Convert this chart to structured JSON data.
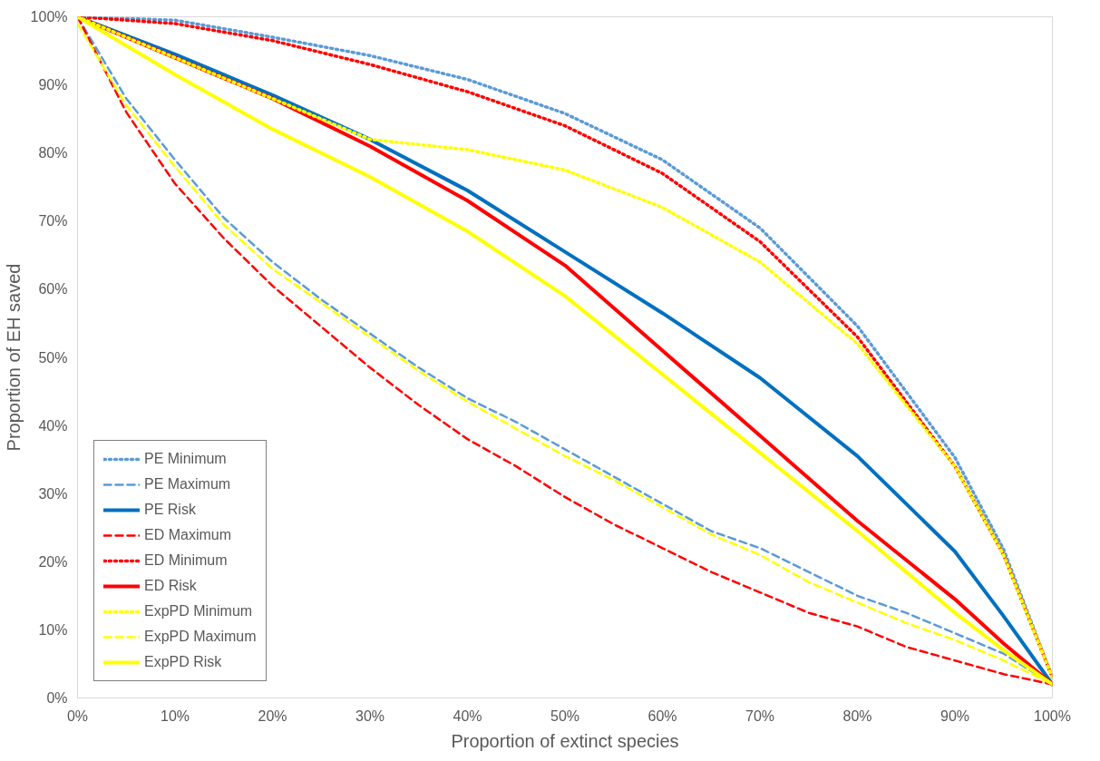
{
  "chart_data": {
    "type": "line",
    "xlabel": "Proportion of extinct species",
    "ylabel": "Proportion of EH saved",
    "xlim": [
      0,
      100
    ],
    "ylim": [
      0,
      100
    ],
    "xticks": [
      {
        "value": 0,
        "label": "0%"
      },
      {
        "value": 10,
        "label": "10%"
      },
      {
        "value": 20,
        "label": "20%"
      },
      {
        "value": 30,
        "label": "30%"
      },
      {
        "value": 40,
        "label": "40%"
      },
      {
        "value": 50,
        "label": "50%"
      },
      {
        "value": 60,
        "label": "60%"
      },
      {
        "value": 70,
        "label": "70%"
      },
      {
        "value": 80,
        "label": "80%"
      },
      {
        "value": 90,
        "label": "90%"
      },
      {
        "value": 100,
        "label": "100%"
      }
    ],
    "yticks": [
      {
        "value": 0,
        "label": "0%"
      },
      {
        "value": 10,
        "label": "10%"
      },
      {
        "value": 20,
        "label": "20%"
      },
      {
        "value": 30,
        "label": "30%"
      },
      {
        "value": 40,
        "label": "40%"
      },
      {
        "value": 50,
        "label": "50%"
      },
      {
        "value": 60,
        "label": "60%"
      },
      {
        "value": 70,
        "label": "70%"
      },
      {
        "value": 80,
        "label": "80%"
      },
      {
        "value": 90,
        "label": "90%"
      },
      {
        "value": 100,
        "label": "100%"
      }
    ],
    "grid": false,
    "legend": "bottom left",
    "marker": "none",
    "series": [
      {
        "name": "PE Minimum",
        "color": "#5b9bd5",
        "line_style": "dotted",
        "x": [
          0,
          10,
          20,
          30,
          40,
          50,
          60,
          70,
          80,
          90,
          95,
          100
        ],
        "values": [
          100,
          99.5,
          97,
          94.3,
          90.8,
          85.8,
          79,
          69,
          54.6,
          35.3,
          21.8,
          3
        ]
      },
      {
        "name": "PE Maximum",
        "color": "#5b9bd5",
        "line_style": "dashed",
        "x": [
          0,
          5,
          10,
          15,
          20,
          25,
          30,
          35,
          40,
          45,
          50,
          55,
          60,
          65,
          70,
          75,
          80,
          85,
          90,
          95,
          100
        ],
        "values": [
          100,
          88,
          79,
          70.5,
          64,
          58.5,
          53.5,
          48.5,
          44,
          40.5,
          36.5,
          32.5,
          28.5,
          24.5,
          22,
          18.5,
          15,
          12.5,
          9.5,
          6.5,
          2
        ]
      },
      {
        "name": "PE Risk",
        "color": "#0070c0",
        "line_style": "solid",
        "x": [
          0,
          10,
          20,
          30,
          40,
          50,
          60,
          70,
          80,
          90,
          95,
          100
        ],
        "values": [
          100,
          94.5,
          88.5,
          82,
          74.5,
          65.5,
          56.5,
          47,
          35.5,
          21.5,
          12,
          2
        ]
      },
      {
        "name": "ED Maximum",
        "color": "#ff0000",
        "line_style": "dashed",
        "x": [
          0,
          5,
          10,
          15,
          20,
          25,
          30,
          35,
          40,
          45,
          50,
          55,
          60,
          65,
          70,
          75,
          80,
          85,
          90,
          95,
          100
        ],
        "values": [
          100,
          86,
          75.5,
          67.5,
          60.5,
          54.5,
          48.5,
          43,
          38,
          34,
          29.5,
          25.5,
          22,
          18.5,
          15.5,
          12.5,
          10.5,
          7.5,
          5.5,
          3.5,
          2
        ]
      },
      {
        "name": "ED Minimum",
        "color": "#ff0000",
        "line_style": "dotted",
        "x": [
          0,
          10,
          20,
          30,
          40,
          50,
          60,
          70,
          80,
          90,
          95,
          100
        ],
        "values": [
          100,
          99,
          96.5,
          93,
          89,
          84,
          77,
          67,
          53,
          34,
          21,
          3
        ]
      },
      {
        "name": "ED Risk",
        "color": "#ff0000",
        "line_style": "solid",
        "x": [
          0,
          10,
          20,
          30,
          40,
          50,
          60,
          70,
          80,
          90,
          95,
          100
        ],
        "values": [
          100,
          94,
          88,
          81,
          73,
          63.5,
          51,
          38.5,
          26,
          14.5,
          8,
          2
        ]
      },
      {
        "name": "ExpPD Minimum",
        "color": "#ffff00",
        "line_style": "dotted",
        "x": [
          0,
          10,
          20,
          30,
          40,
          50,
          60,
          70,
          80,
          90,
          95,
          100
        ],
        "values": [
          100,
          94,
          88,
          82,
          80.5,
          77.5,
          72,
          64,
          52,
          34,
          21,
          3
        ]
      },
      {
        "name": "ExpPD Maximum",
        "color": "#ffff00",
        "line_style": "dashed",
        "x": [
          0,
          5,
          10,
          15,
          20,
          25,
          30,
          35,
          40,
          45,
          50,
          55,
          60,
          65,
          70,
          75,
          80,
          85,
          90,
          95,
          100
        ],
        "values": [
          99,
          87,
          78,
          69.5,
          63,
          58,
          53,
          48,
          43.5,
          39.5,
          35.5,
          32,
          28,
          24,
          21,
          17,
          14,
          11,
          8.5,
          5.5,
          2
        ]
      },
      {
        "name": "ExpPD Risk",
        "color": "#ffff00",
        "line_style": "solid",
        "x": [
          0,
          10,
          20,
          30,
          40,
          50,
          60,
          70,
          80,
          90,
          95,
          100
        ],
        "values": [
          100,
          91.5,
          83.5,
          76.5,
          68.5,
          59,
          47.5,
          36,
          24.5,
          12.5,
          7,
          2
        ]
      }
    ]
  }
}
